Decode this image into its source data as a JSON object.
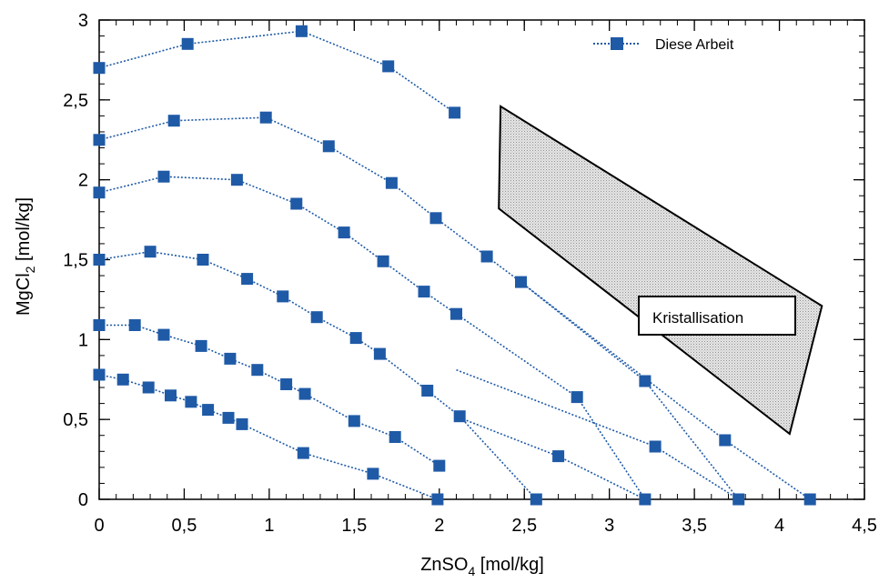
{
  "chart_data": {
    "type": "line",
    "xlabel": "ZnSO",
    "xlabel_sub": "4",
    "xlabel_unit": " [mol/kg]",
    "ylabel": "MgCl",
    "ylabel_sub": "2",
    "ylabel_unit": " [mol/kg]",
    "xlim": [
      0,
      4.5
    ],
    "ylim": [
      0,
      3
    ],
    "x_ticks": [
      0,
      0.5,
      1,
      1.5,
      2,
      2.5,
      3,
      3.5,
      4,
      4.5
    ],
    "x_tick_labels": [
      "0",
      "0,5",
      "1",
      "1,5",
      "2",
      "2,5",
      "3",
      "3,5",
      "4",
      "4,5"
    ],
    "y_ticks": [
      0,
      0.5,
      1,
      1.5,
      2,
      2.5,
      3
    ],
    "y_tick_labels": [
      "0",
      "0,5",
      "1",
      "1,5",
      "2",
      "2,5",
      "3"
    ],
    "x_minor_step": 0.1,
    "y_minor_step": 0.1,
    "grid": false,
    "legend_position": "top-right",
    "legend_label": "Diese Arbeit",
    "color": "#1f5aa6",
    "series": [
      {
        "x": [
          0,
          0.14,
          0.29,
          0.42,
          0.54,
          0.64,
          0.76,
          0.84,
          1.2,
          1.61,
          1.99
        ],
        "y": [
          0.78,
          0.75,
          0.7,
          0.65,
          0.61,
          0.56,
          0.51,
          0.47,
          0.29,
          0.16,
          0.0
        ]
      },
      {
        "x": [
          0,
          0.21,
          0.38,
          0.6,
          0.77,
          0.93,
          1.1,
          1.21,
          1.5,
          1.74,
          2.0
        ],
        "y": [
          1.09,
          1.09,
          1.03,
          0.96,
          0.88,
          0.81,
          0.72,
          0.66,
          0.49,
          0.39,
          0.21
        ]
      },
      {
        "x": [
          0,
          0.3,
          0.61,
          0.87,
          1.08,
          1.28,
          1.51,
          1.65,
          1.93,
          2.12,
          2.57
        ],
        "y": [
          1.5,
          1.55,
          1.5,
          1.38,
          1.27,
          1.14,
          1.01,
          0.91,
          0.68,
          0.52,
          0.0
        ]
      },
      {
        "x": [
          0,
          0.38,
          0.81,
          1.16,
          1.44,
          1.67,
          1.91,
          2.1,
          2.81,
          3.21
        ],
        "y": [
          1.92,
          2.02,
          2.0,
          1.85,
          1.67,
          1.49,
          1.3,
          1.16,
          0.64,
          0.0
        ]
      },
      {
        "x": [
          0,
          0.44,
          0.98,
          1.35,
          1.72,
          1.98,
          2.28,
          2.48,
          3.21,
          3.76
        ],
        "y": [
          2.25,
          2.37,
          2.39,
          2.21,
          1.98,
          1.76,
          1.52,
          1.36,
          0.74,
          0.0
        ]
      },
      {
        "x": [
          0,
          0.52,
          1.19,
          1.7,
          2.09
        ],
        "y": [
          2.7,
          2.85,
          2.93,
          2.71,
          2.42
        ]
      }
    ],
    "extra_points": [
      {
        "x": 3.27,
        "y": 0.33
      },
      {
        "x": 2.7,
        "y": 0.27
      },
      {
        "x": 3.68,
        "y": 0.37
      },
      {
        "x": 4.18,
        "y": 0.0
      }
    ],
    "extra_lines": [
      {
        "x": [
          2.1,
          3.27,
          3.76
        ],
        "y": [
          0.81,
          0.33,
          0.0
        ]
      },
      {
        "x": [
          2.12,
          2.7,
          3.21
        ],
        "y": [
          0.51,
          0.27,
          0.0
        ]
      },
      {
        "x": [
          2.48,
          3.68,
          4.18
        ],
        "y": [
          1.36,
          0.37,
          0.0
        ]
      }
    ],
    "region": {
      "label": "Kristallisation",
      "polygon": [
        [
          2.36,
          2.46
        ],
        [
          2.35,
          1.82
        ],
        [
          4.06,
          0.41
        ],
        [
          4.25,
          1.21
        ]
      ],
      "fill_color": "#bfbfbf"
    }
  }
}
